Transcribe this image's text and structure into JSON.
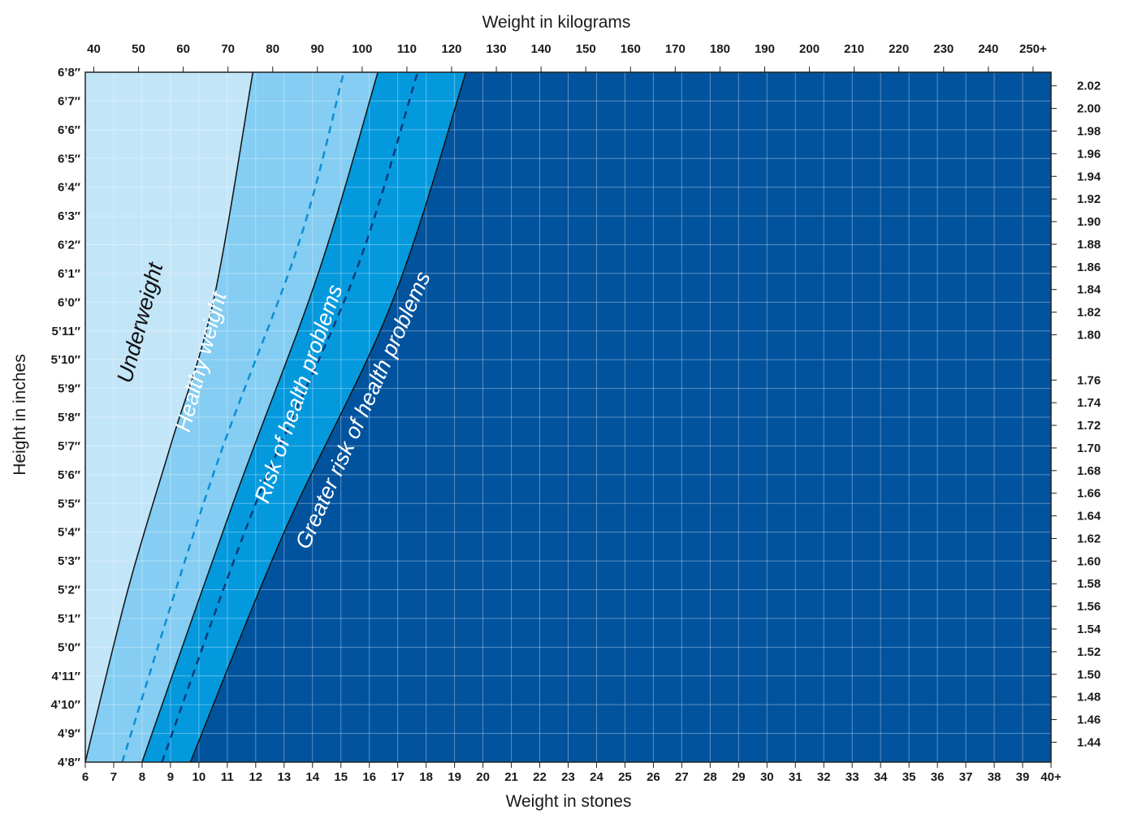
{
  "chart_data": {
    "type": "area",
    "top_axis": {
      "label": "Weight in kilograms",
      "ticks": [
        "40",
        "50",
        "60",
        "70",
        "80",
        "90",
        "100",
        "110",
        "120",
        "130",
        "140",
        "150",
        "160",
        "170",
        "180",
        "190",
        "200",
        "210",
        "220",
        "230",
        "240",
        "250+"
      ]
    },
    "bottom_axis": {
      "label": "Weight in stones",
      "ticks": [
        "6",
        "7",
        "8",
        "9",
        "10",
        "11",
        "12",
        "13",
        "14",
        "15",
        "16",
        "17",
        "18",
        "19",
        "20",
        "21",
        "22",
        "23",
        "24",
        "25",
        "26",
        "27",
        "28",
        "29",
        "30",
        "31",
        "32",
        "33",
        "34",
        "35",
        "36",
        "37",
        "38",
        "39",
        "40+"
      ],
      "range": [
        6,
        40
      ]
    },
    "left_axis": {
      "label": "Height in inches",
      "ticks": [
        "6’8″",
        "6’7″",
        "6’6″",
        "6’5″",
        "6’4″",
        "6’3″",
        "6’2″",
        "6’1″",
        "6’0″",
        "5’11″",
        "5’10″",
        "5’9″",
        "5’8″",
        "5’7″",
        "5’6″",
        "5’5″",
        "5’4″",
        "5’3″",
        "5’2″",
        "5’1″",
        "5’0″",
        "4’11″",
        "4’10″",
        "4’9″",
        "4’8″"
      ],
      "range_inches": [
        56,
        80
      ]
    },
    "right_axis": {
      "ticks": [
        "2.02",
        "2.00",
        "1.98",
        "1.96",
        "1.94",
        "1.92",
        "1.90",
        "1.88",
        "1.86",
        "1.84",
        "1.82",
        "1.80",
        "1.76",
        "1.74",
        "1.72",
        "1.70",
        "1.68",
        "1.66",
        "1.64",
        "1.62",
        "1.60",
        "1.58",
        "1.56",
        "1.54",
        "1.52",
        "1.50",
        "1.48",
        "1.46",
        "1.44"
      ]
    },
    "boundaries": [
      {
        "style": "solid",
        "points": [
          {
            "stones": 6.0,
            "inches": 56
          },
          {
            "stones": 7.5,
            "inches": 62
          },
          {
            "stones": 9.0,
            "inches": 67
          },
          {
            "stones": 10.5,
            "inches": 72
          },
          {
            "stones": 11.9,
            "inches": 80
          }
        ]
      },
      {
        "style": "dashed",
        "points": [
          {
            "stones": 7.3,
            "inches": 56
          },
          {
            "stones": 10.5,
            "inches": 66
          },
          {
            "stones": 13.5,
            "inches": 74
          },
          {
            "stones": 15.1,
            "inches": 80
          }
        ]
      },
      {
        "style": "solid",
        "points": [
          {
            "stones": 8.0,
            "inches": 56
          },
          {
            "stones": 11.2,
            "inches": 65
          },
          {
            "stones": 14.2,
            "inches": 73
          },
          {
            "stones": 16.3,
            "inches": 80
          }
        ]
      },
      {
        "style": "dashed",
        "points": [
          {
            "stones": 8.7,
            "inches": 56
          },
          {
            "stones": 12.0,
            "inches": 65
          },
          {
            "stones": 15.5,
            "inches": 73
          },
          {
            "stones": 17.7,
            "inches": 80
          }
        ]
      },
      {
        "style": "solid",
        "points": [
          {
            "stones": 9.7,
            "inches": 56
          },
          {
            "stones": 13.0,
            "inches": 64
          },
          {
            "stones": 16.8,
            "inches": 72
          },
          {
            "stones": 19.4,
            "inches": 80
          }
        ]
      }
    ],
    "bands": [
      {
        "label": "Underweight",
        "color": "#c3e5f8",
        "text_color": "#111111"
      },
      {
        "label": "Healthy weight",
        "color": "#85cdf2",
        "text_color": "#ffffff"
      },
      {
        "label": "Risk of health problems",
        "color": "#0499dd",
        "text_color": "#ffffff"
      },
      {
        "label": "Greater risk of health problems",
        "color": "#02539e",
        "text_color": "#ffffff"
      }
    ]
  }
}
